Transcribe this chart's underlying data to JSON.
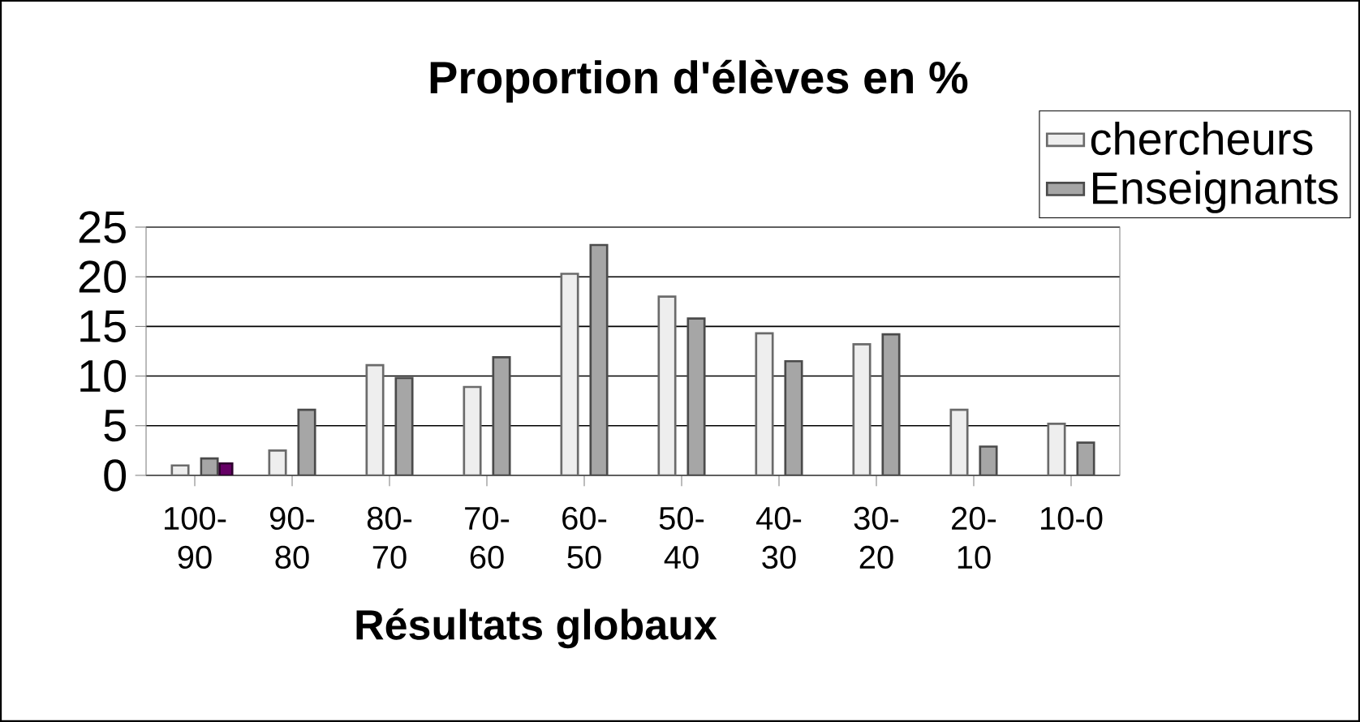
{
  "chart_data": {
    "type": "bar",
    "title": "Proportion d'élèves en %",
    "xlabel": "Résultats globaux",
    "categories": [
      "100-90",
      "90-80",
      "80-70",
      "70-60",
      "60-50",
      "50-40",
      "40-30",
      "30-20",
      "20-10",
      "10-0"
    ],
    "series": [
      {
        "name": "chercheurs",
        "color": "#eeeeee",
        "values": [
          1.0,
          2.5,
          11.1,
          8.9,
          20.3,
          18.0,
          14.3,
          13.2,
          6.6,
          5.2
        ]
      },
      {
        "name": "Enseignants",
        "color": "#a6a6a6",
        "values": [
          1.7,
          6.6,
          9.8,
          11.9,
          23.2,
          15.8,
          11.5,
          14.2,
          2.9,
          3.3
        ]
      },
      {
        "color": "#660066",
        "values": [
          1.2,
          null,
          null,
          null,
          null,
          null,
          null,
          null,
          null,
          null
        ]
      }
    ],
    "ylim": [
      0,
      25
    ],
    "yticks": [
      0,
      5,
      10,
      15,
      20,
      25
    ],
    "grid": "y",
    "legend": "top right"
  }
}
